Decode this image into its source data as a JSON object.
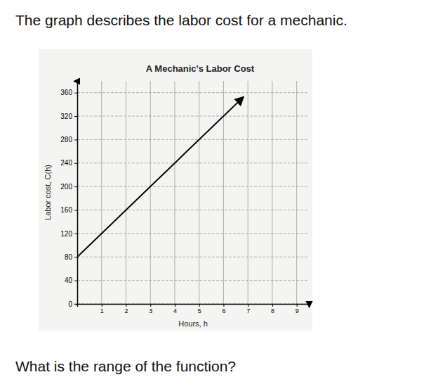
{
  "header": "The graph describes the labor cost for a mechanic.",
  "question": "What is the range of the function?",
  "chart_data": {
    "type": "line",
    "title": "A Mechanic's Labor Cost",
    "x_label": "Hours, h",
    "y_label": "Labor cost, C(h)",
    "series": [
      {
        "x": [
          0,
          6.8
        ],
        "values": [
          80,
          352
        ],
        "color": "#000000"
      }
    ],
    "xlim": [
      0,
      9.5
    ],
    "ylim": [
      0,
      380
    ],
    "xticks": [
      1,
      2,
      3,
      4,
      5,
      6,
      7,
      8,
      9
    ],
    "yticks": [
      0,
      40,
      80,
      120,
      160,
      200,
      240,
      280,
      320,
      360
    ],
    "grid": true
  }
}
